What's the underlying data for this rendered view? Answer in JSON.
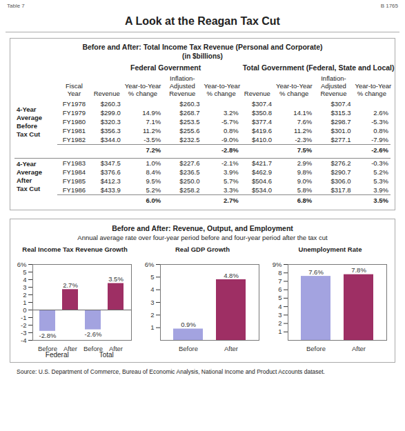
{
  "header": {
    "table_label": "Table 7",
    "code": "B 1765",
    "title": "A Look at the Reagan Tax Cut"
  },
  "table": {
    "title": "Before and After: Total Income Tax Revenue (Personal and Corporate)",
    "subtitle": "(in $billions)",
    "group_headers": [
      "Federal Government",
      "Total Government (Federal, State and Local)"
    ],
    "column_headers": [
      [
        "Fiscal",
        "Year"
      ],
      [
        "Revenue"
      ],
      [
        "Year-to-Year",
        "% change"
      ],
      [
        "Inflation-",
        "Adjusted",
        "Revenue"
      ],
      [
        "Year-to-Year",
        "% change"
      ],
      [
        "Revenue"
      ],
      [
        "Year-to-Year",
        "% change"
      ],
      [
        "Inflation-",
        "Adjusted",
        "Revenue"
      ],
      [
        "Year-to-Year",
        "% change"
      ]
    ],
    "sections": [
      {
        "label": [
          "4-Year",
          "Average",
          "Before",
          "Tax Cut"
        ],
        "rows": [
          [
            "FY1978",
            "$260.3",
            null,
            "$260.3",
            null,
            "$307.4",
            null,
            "$307.4",
            null
          ],
          [
            "FY1979",
            "$299.0",
            "14.9%",
            "$268.7",
            "3.2%",
            "$350.8",
            "14.1%",
            "$315.3",
            "2.6%"
          ],
          [
            "FY1980",
            "$320.3",
            "7.1%",
            "$253.5",
            "-5.7%",
            "$377.4",
            "7.6%",
            "$298.7",
            "-5.3%"
          ],
          [
            "FY1981",
            "$356.3",
            "11.2%",
            "$255.6",
            "0.8%",
            "$419.6",
            "11.2%",
            "$301.0",
            "0.8%"
          ],
          [
            "FY1982",
            "$344.0",
            "-3.5%",
            "$232.5",
            "-9.0%",
            "$410.0",
            "-2.3%",
            "$277.1",
            "-7.9%"
          ]
        ],
        "average": [
          "7.2%",
          "-2.8%",
          "7.5%",
          "-2.6%"
        ]
      },
      {
        "label": [
          "4-Year",
          "Average",
          "After",
          "Tax Cut"
        ],
        "rows": [
          [
            "FY1983",
            "$347.5",
            "1.0%",
            "$227.6",
            "-2.1%",
            "$421.7",
            "2.9%",
            "$276.2",
            "-0.3%"
          ],
          [
            "FY1984",
            "$376.6",
            "8.4%",
            "$236.5",
            "3.9%",
            "$462.9",
            "9.8%",
            "$290.7",
            "5.2%"
          ],
          [
            "FY1985",
            "$412.3",
            "9.5%",
            "$250.0",
            "5.7%",
            "$504.6",
            "9.0%",
            "$306.0",
            "5.3%"
          ],
          [
            "FY1986",
            "$433.9",
            "5.2%",
            "$258.2",
            "3.3%",
            "$534.0",
            "5.8%",
            "$317.8",
            "3.9%"
          ]
        ],
        "average": [
          "6.0%",
          "2.7%",
          "6.8%",
          "3.5%"
        ]
      }
    ]
  },
  "charts_section": {
    "title": "Before and After: Revenue, Output, and Employment",
    "subtitle": "Annual average rate over four-year period before and four-year period after the tax cut"
  },
  "chart_data": [
    {
      "type": "bar",
      "title": "Real Income Tax Revenue Growth",
      "categories": [
        "Before",
        "After",
        "Before",
        "After"
      ],
      "groups": [
        "Federal",
        "Federal",
        "Total",
        "Total"
      ],
      "values": [
        -2.8,
        2.7,
        -2.6,
        3.5
      ],
      "value_labels": [
        "-2.8%",
        "2.7%",
        "-2.6%",
        "3.5%"
      ],
      "colors": [
        "#a3a3e0",
        "#9e2f64",
        "#a3a3e0",
        "#9e2f64"
      ],
      "ylim": [
        -4,
        6
      ],
      "yticks": [
        -4,
        -3,
        -2,
        -1,
        0,
        1,
        2,
        3,
        4,
        5,
        {
          "value": 6,
          "label": "6%"
        }
      ],
      "data_labels": true,
      "grid": false
    },
    {
      "type": "bar",
      "title": "Real GDP Growth",
      "categories": [
        "Before",
        "After"
      ],
      "values": [
        0.9,
        4.8
      ],
      "value_labels": [
        "0.9%",
        "4.8%"
      ],
      "colors": [
        "#a3a3e0",
        "#9e2f64"
      ],
      "ylim": [
        0,
        6
      ],
      "yticks": [
        1,
        2,
        3,
        4,
        5,
        {
          "value": 6,
          "label": "6%"
        }
      ],
      "data_labels": true,
      "grid": false
    },
    {
      "type": "bar",
      "title": "Unemployment Rate",
      "categories": [
        "Before",
        "After"
      ],
      "values": [
        7.6,
        7.8
      ],
      "value_labels": [
        "7.6%",
        "7.8%"
      ],
      "colors": [
        "#a3a3e0",
        "#9e2f64"
      ],
      "ylim": [
        0,
        9
      ],
      "yticks": [
        1,
        2,
        3,
        4,
        5,
        6,
        7,
        8,
        {
          "value": 9,
          "label": "9%"
        }
      ],
      "data_labels": true,
      "grid": false
    }
  ],
  "source": "Source: U.S. Department of Commerce, Bureau of Economic Analysis, National Income and Product Accounts dataset."
}
